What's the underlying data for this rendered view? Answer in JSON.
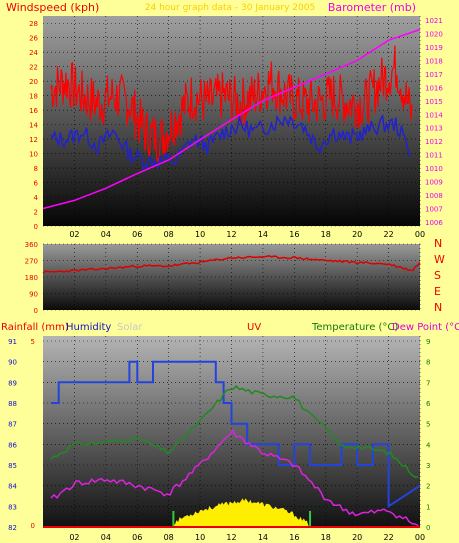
{
  "colors": {
    "background": "#ffff99",
    "wind_gust": "#ff0000",
    "wind_avg": "#2222cc",
    "barometer": "#ff00ff",
    "direction": "#dd0000",
    "humidity": "#2244dd",
    "temperature": "#228822",
    "dew_point": "#dd22dd",
    "solar": "#ffee00",
    "rainfall": "#ee0000",
    "uv": "#ff0000",
    "solar_label": "#c8c8c8"
  },
  "chart_data": [
    {
      "type": "line",
      "name": "wind-barometer",
      "left_title": "Windspeed (kph)",
      "center_title": "24 hour graph data - 30 January 2005",
      "right_title": "Barometer (mb)",
      "x_ticks": [
        "02",
        "04",
        "06",
        "08",
        "10",
        "12",
        "14",
        "16",
        "18",
        "20",
        "22",
        "00"
      ],
      "y_left_ticks": [
        "0",
        "2",
        "4",
        "6",
        "8",
        "10",
        "12",
        "14",
        "16",
        "18",
        "20",
        "22",
        "24",
        "26",
        "28"
      ],
      "y_left_range": [
        0,
        29
      ],
      "y_right_ticks": [
        "1006",
        "1007",
        "1008",
        "1009",
        "1010",
        "1011",
        "1012",
        "1013",
        "1014",
        "1015",
        "1016",
        "1017",
        "1018",
        "1019",
        "1020",
        "1021"
      ],
      "y_right_range": [
        1005.7,
        1021.3
      ],
      "x_range": [
        0,
        24
      ],
      "series": [
        {
          "key": "gust",
          "x": [
            0.5,
            1.5,
            2.5,
            3.5,
            4.5,
            5.5,
            6.5,
            7.5,
            8.5,
            9.5,
            10.5,
            11.5,
            12.5,
            13.5,
            14.5,
            15.5,
            16.5,
            17.5,
            18.5,
            19.5,
            20.5,
            21.5,
            22.5,
            23.5
          ],
          "values": [
            19,
            20,
            18,
            17,
            18,
            17,
            13,
            12,
            15,
            18,
            17,
            18,
            17,
            18,
            20,
            18,
            17,
            17,
            18,
            17,
            17,
            20,
            22,
            15
          ]
        },
        {
          "key": "avg",
          "x": [
            0.5,
            1.5,
            2.5,
            3.5,
            4.5,
            5.5,
            6.5,
            7.5,
            8.5,
            9.5,
            10.5,
            11.5,
            12.5,
            13.5,
            14.5,
            15.5,
            16.5,
            17.5,
            18.5,
            19.5,
            20.5,
            21.5,
            22.5,
            23.5
          ],
          "values": [
            12,
            12,
            13,
            11,
            13,
            10,
            9,
            9,
            9,
            12,
            11,
            13,
            14,
            13,
            14,
            15,
            14,
            11,
            13,
            12,
            13,
            14,
            14,
            10
          ]
        },
        {
          "key": "barometer",
          "x": [
            0,
            2,
            4,
            6,
            8,
            10,
            12,
            14,
            16,
            18,
            20,
            22,
            24
          ],
          "values": [
            1007.0,
            1007.6,
            1008.5,
            1009.6,
            1010.6,
            1012.1,
            1013.6,
            1015.0,
            1016.0,
            1017.0,
            1018.0,
            1019.5,
            1020.3
          ]
        }
      ]
    },
    {
      "type": "line",
      "name": "wind-direction",
      "y_ticks": [
        "0",
        "90",
        "180",
        "270",
        "360"
      ],
      "y_range": [
        0,
        360
      ],
      "compass": [
        "N",
        "W",
        "S",
        "E",
        "N"
      ],
      "x_ticks": [
        "02",
        "04",
        "06",
        "08",
        "10",
        "12",
        "14",
        "16",
        "18",
        "20",
        "22",
        "00"
      ],
      "x_range": [
        0,
        24
      ],
      "series": [
        {
          "key": "direction",
          "x": [
            0,
            2,
            4,
            6,
            8,
            10,
            12,
            14,
            16,
            18,
            20,
            22,
            23.5,
            24
          ],
          "values": [
            205,
            215,
            225,
            240,
            240,
            260,
            285,
            290,
            285,
            270,
            260,
            250,
            215,
            260
          ]
        }
      ]
    },
    {
      "type": "line",
      "name": "temperature-humidity",
      "legend": [
        "Rainfall (mm)",
        "Humidity",
        "Solar",
        "UV",
        "Temperature (°C)",
        "Dew Point (°C)"
      ],
      "x_ticks": [
        "02",
        "04",
        "06",
        "08",
        "10",
        "12",
        "14",
        "16",
        "18",
        "20",
        "22",
        "00"
      ],
      "x_range": [
        0,
        24
      ],
      "y_left_ticks": [
        "82",
        "83",
        "84",
        "85",
        "86",
        "87",
        "88",
        "89",
        "90",
        "91"
      ],
      "y_left_range": [
        82,
        91
      ],
      "y_right_ticks": [
        "0",
        "1",
        "2",
        "3",
        "4",
        "5",
        "6",
        "7",
        "8",
        "9"
      ],
      "y_right_range": [
        0,
        9
      ],
      "rain_axis_ticks": [
        "0",
        "5"
      ],
      "series": [
        {
          "key": "humidity",
          "x": [
            0.5,
            1,
            1,
            5.5,
            5.5,
            6,
            6,
            7,
            7,
            8,
            8,
            11,
            11,
            11.5,
            11.5,
            12,
            12,
            13,
            13,
            15,
            15,
            16,
            16,
            17,
            17,
            19,
            19,
            20,
            20,
            21,
            21,
            22,
            22,
            24
          ],
          "values": [
            88,
            88,
            89,
            89,
            90,
            90,
            89,
            89,
            90,
            90,
            90,
            90,
            89,
            89,
            88,
            88,
            87,
            87,
            86,
            86,
            85,
            85,
            86,
            86,
            85,
            85,
            86,
            86,
            85,
            85,
            86,
            86,
            83,
            84
          ]
        },
        {
          "key": "temperature",
          "x": [
            0.5,
            2,
            4,
            6,
            8,
            10,
            12,
            14,
            16,
            17,
            18,
            19,
            20,
            22,
            24
          ],
          "values": [
            3.3,
            4.0,
            4.1,
            4.3,
            3.6,
            5.1,
            6.8,
            6.4,
            6.3,
            5.4,
            4.8,
            3.9,
            3.9,
            3.6,
            2.3
          ]
        },
        {
          "key": "dew_point",
          "x": [
            0.5,
            2,
            4,
            6,
            8,
            10,
            12,
            14,
            16,
            17,
            18,
            19,
            20,
            22,
            24
          ],
          "values": [
            1.3,
            2.1,
            2.3,
            2.0,
            1.6,
            3.0,
            4.6,
            3.6,
            3.0,
            2.2,
            1.4,
            0.9,
            0.6,
            0.8,
            0.0
          ]
        },
        {
          "key": "solar",
          "x": [
            8.3,
            9,
            10,
            11,
            12,
            13,
            14,
            15,
            16,
            17
          ],
          "values": [
            0.2,
            0.5,
            0.8,
            1.0,
            1.2,
            1.3,
            1.1,
            0.9,
            0.6,
            0.1
          ]
        }
      ]
    }
  ]
}
